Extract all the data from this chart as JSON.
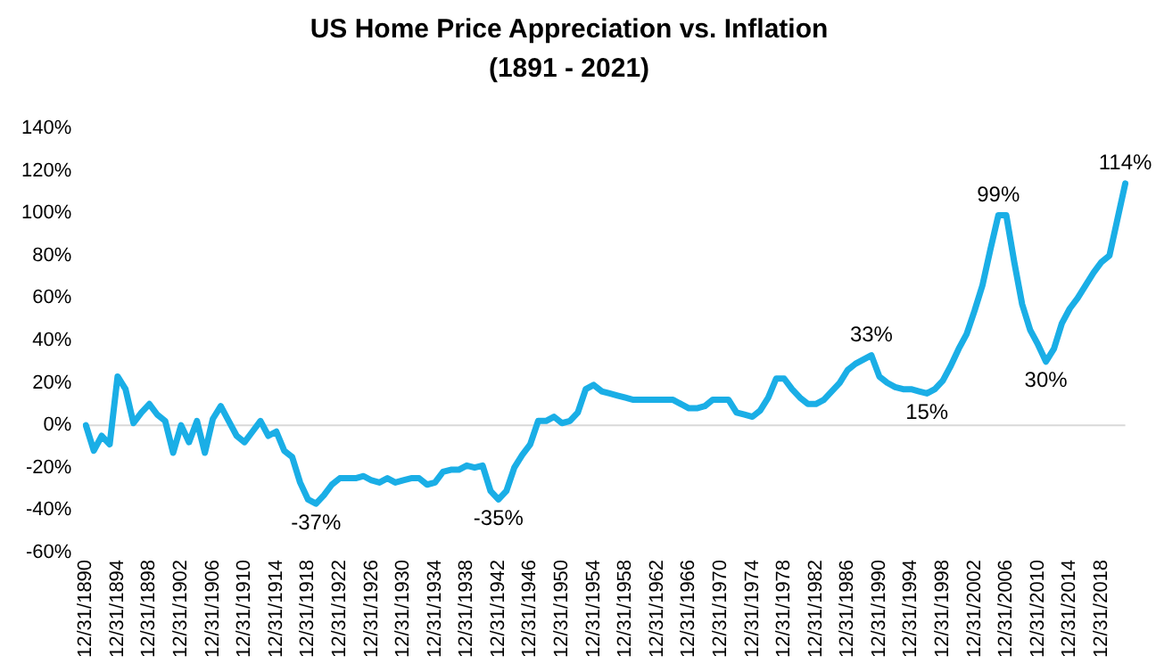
{
  "chart_data": {
    "type": "line",
    "title": "US Home Price Appreciation vs. Inflation",
    "subtitle": "(1891 - 2021)",
    "categories": [
      "12/31/1890",
      null,
      null,
      null,
      "12/31/1894",
      null,
      null,
      null,
      "12/31/1898",
      null,
      null,
      null,
      "12/31/1902",
      null,
      null,
      null,
      "12/31/1906",
      null,
      null,
      null,
      "12/31/1910",
      null,
      null,
      null,
      "12/31/1914",
      null,
      null,
      null,
      "12/31/1918",
      null,
      null,
      null,
      "12/31/1922",
      null,
      null,
      null,
      "12/31/1926",
      null,
      null,
      null,
      "12/31/1930",
      null,
      null,
      null,
      "12/31/1934",
      null,
      null,
      null,
      "12/31/1938",
      null,
      null,
      null,
      "12/31/1942",
      null,
      null,
      null,
      "12/31/1946",
      null,
      null,
      null,
      "12/31/1950",
      null,
      null,
      null,
      "12/31/1954",
      null,
      null,
      null,
      "12/31/1958",
      null,
      null,
      null,
      "12/31/1962",
      null,
      null,
      null,
      "12/31/1966",
      null,
      null,
      null,
      "12/31/1970",
      null,
      null,
      null,
      "12/31/1974",
      null,
      null,
      null,
      "12/31/1978",
      null,
      null,
      null,
      "12/31/1982",
      null,
      null,
      null,
      "12/31/1986",
      null,
      null,
      null,
      "12/31/1990",
      null,
      null,
      null,
      "12/31/1994",
      null,
      null,
      null,
      "12/31/1998",
      null,
      null,
      null,
      "12/31/2002",
      null,
      null,
      null,
      "12/31/2006",
      null,
      null,
      null,
      "12/31/2010",
      null,
      null,
      null,
      "12/31/2014",
      null,
      null,
      null,
      "12/31/2018",
      null,
      null,
      null
    ],
    "series": [
      {
        "color": "#1aaee6",
        "values": [
          0,
          -12,
          -5,
          -9,
          23,
          17,
          1,
          6,
          10,
          5,
          2,
          -13,
          0,
          -8,
          2,
          -13,
          3,
          9,
          2,
          -5,
          -8,
          -3,
          2,
          -5,
          -3,
          -12,
          -15,
          -27,
          -35,
          -37,
          -33,
          -28,
          -25,
          -25,
          -25,
          -24,
          -26,
          -27,
          -25,
          -27,
          -26,
          -25,
          -25,
          -28,
          -27,
          -22,
          -21,
          -21,
          -19,
          -20,
          -19,
          -31,
          -35,
          -31,
          -20,
          -14,
          -9,
          2,
          2,
          4,
          1,
          2,
          6,
          17,
          19,
          16,
          15,
          14,
          13,
          12,
          12,
          12,
          12,
          12,
          12,
          10,
          8,
          8,
          9,
          12,
          12,
          12,
          6,
          5,
          4,
          7,
          13,
          22,
          22,
          17,
          13,
          10,
          10,
          12,
          16,
          20,
          26,
          29,
          31,
          33,
          23,
          20,
          18,
          17,
          17,
          16,
          15,
          17,
          21,
          28,
          36,
          43,
          54,
          66,
          83,
          99,
          99,
          77,
          57,
          45,
          38,
          30,
          36,
          48,
          55,
          60,
          66,
          72,
          77,
          80,
          97,
          114
        ],
        "value_labels": [
          null,
          null,
          null,
          null,
          null,
          null,
          null,
          null,
          null,
          null,
          null,
          null,
          null,
          null,
          null,
          null,
          null,
          null,
          null,
          null,
          null,
          null,
          null,
          null,
          null,
          null,
          null,
          null,
          null,
          "-37%",
          null,
          null,
          null,
          null,
          null,
          null,
          null,
          null,
          null,
          null,
          null,
          null,
          null,
          null,
          null,
          null,
          null,
          null,
          null,
          null,
          null,
          null,
          "-35%",
          null,
          null,
          null,
          null,
          null,
          null,
          null,
          null,
          null,
          null,
          null,
          null,
          null,
          null,
          null,
          null,
          null,
          null,
          null,
          null,
          null,
          null,
          null,
          null,
          null,
          null,
          null,
          null,
          null,
          null,
          null,
          null,
          null,
          null,
          null,
          null,
          null,
          null,
          null,
          null,
          null,
          null,
          null,
          null,
          null,
          null,
          "33%",
          null,
          null,
          null,
          null,
          null,
          null,
          "15%",
          null,
          null,
          null,
          null,
          null,
          null,
          null,
          null,
          "99%",
          null,
          null,
          null,
          null,
          null,
          "30%",
          null,
          null,
          null,
          null,
          null,
          null,
          null,
          null,
          null,
          "114%"
        ]
      }
    ],
    "ylim": [
      -60,
      140
    ],
    "yticks": [
      {
        "value": -60,
        "label": "-60%"
      },
      {
        "value": -40,
        "label": "-40%"
      },
      {
        "value": -20,
        "label": "-20%"
      },
      {
        "value": 0,
        "label": "0%"
      },
      {
        "value": 20,
        "label": "20%"
      },
      {
        "value": 40,
        "label": "40%"
      },
      {
        "value": 60,
        "label": "60%"
      },
      {
        "value": 80,
        "label": "80%"
      },
      {
        "value": 100,
        "label": "100%"
      },
      {
        "value": 120,
        "label": "120%"
      },
      {
        "value": 140,
        "label": "140%"
      }
    ],
    "ref_lines": [
      {
        "axis": "y",
        "value": 0,
        "color": "#d9d9d9"
      }
    ],
    "grid": false,
    "legend": false,
    "marker": "none",
    "line_style": "solid"
  }
}
